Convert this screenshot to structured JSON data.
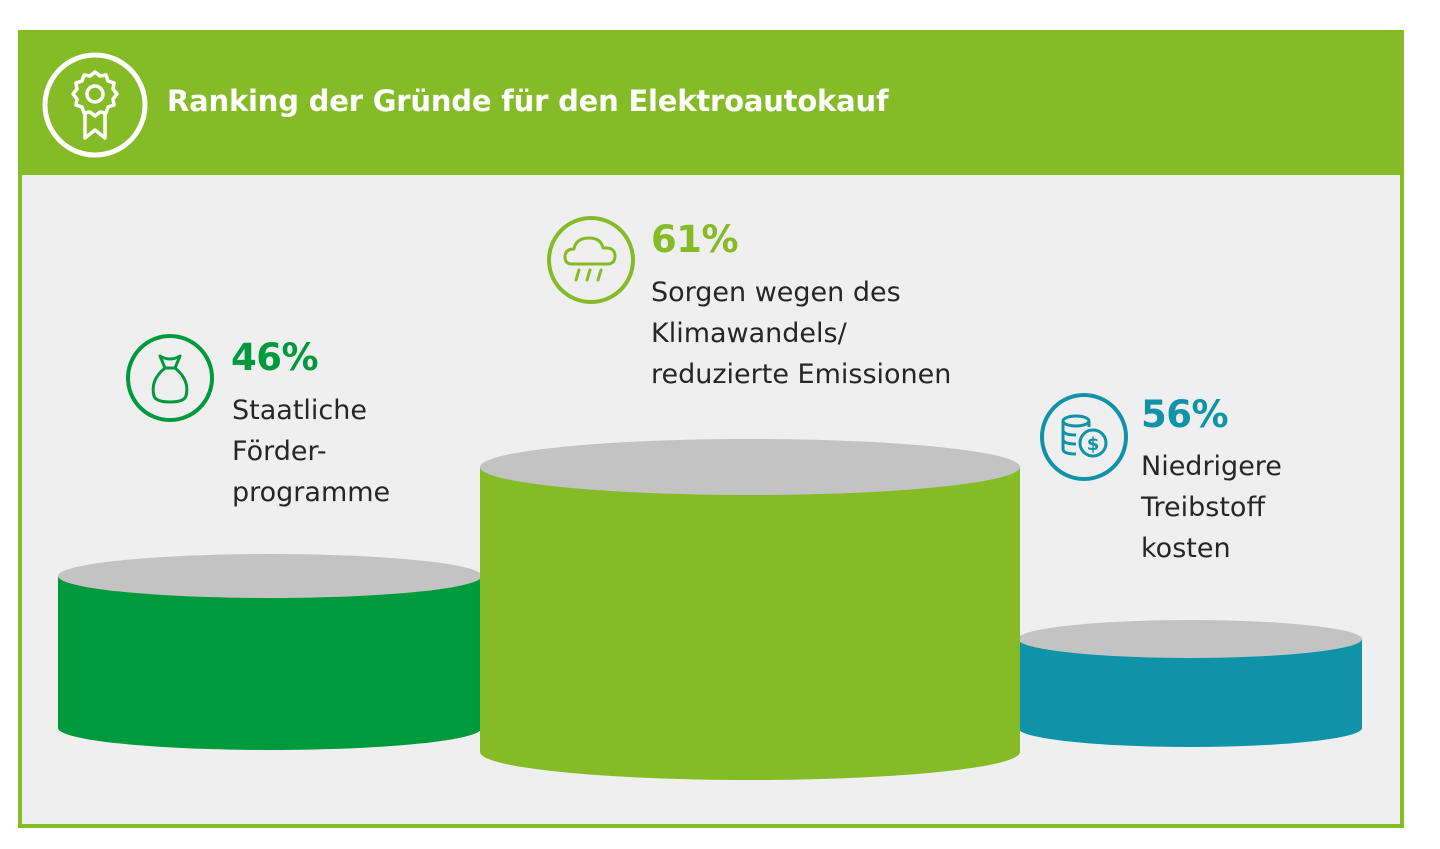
{
  "title": "Ranking der Gründe für den Elektroautokauf",
  "colors": {
    "header": "#85bb26",
    "background": "#efefef",
    "dark_green": "#009a3e",
    "light_green": "#85bb26",
    "teal": "#0e93a8",
    "podium_top": "#c3c3c3"
  },
  "chart_data": {
    "type": "bar",
    "categories": [
      "Staatliche Förder-programme",
      "Sorgen wegen des Klimawandels/ reduzierte Emissionen",
      "Niedrigere Treibstoff kosten"
    ],
    "values": [
      46,
      61,
      56
    ],
    "unit": "%",
    "items": [
      {
        "value": 46,
        "value_label": "46%",
        "label_lines": [
          "Staatliche",
          "Förder-",
          "programme"
        ],
        "icon": "money-bag-icon",
        "color": "#009a3e"
      },
      {
        "value": 61,
        "value_label": "61%",
        "label_lines": [
          "Sorgen wegen des",
          "Klimawandels/",
          "reduzierte Emissionen"
        ],
        "icon": "rain-cloud-icon",
        "color": "#85bb26"
      },
      {
        "value": 56,
        "value_label": "56%",
        "label_lines": [
          "Niedrigere",
          "Treibstoff",
          "kosten"
        ],
        "icon": "coins-dollar-icon",
        "color": "#0e93a8"
      }
    ]
  }
}
